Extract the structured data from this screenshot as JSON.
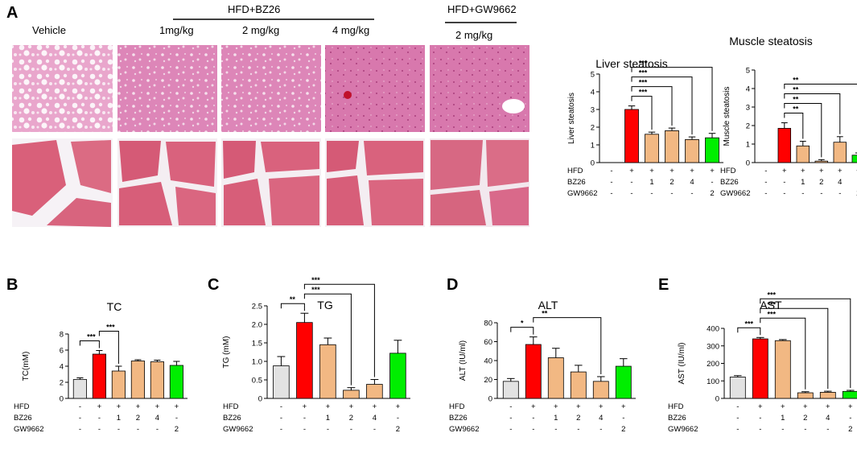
{
  "panels": {
    "A": "A",
    "B": "B",
    "C": "C",
    "D": "D",
    "E": "E"
  },
  "histology_headers": {
    "vehicle": "Vehicle",
    "bz26_group": "HFD+BZ26",
    "dose1": "1mg/kg",
    "dose2": "2 mg/kg",
    "dose4": "4 mg/kg",
    "gw_group": "HFD+GW9662",
    "gw_dose": "2 mg/kg"
  },
  "group_table": {
    "row_labels": [
      "HFD",
      "BZ26",
      "GW9662"
    ],
    "rows": [
      [
        "-",
        "+",
        "+",
        "+",
        "+",
        "+"
      ],
      [
        "-",
        "-",
        "1",
        "2",
        "4",
        "-"
      ],
      [
        "-",
        "-",
        "-",
        "-",
        "-",
        "2"
      ]
    ]
  },
  "bar_colors": [
    "#e2e2e2",
    "#ff0000",
    "#f2b883",
    "#f2b883",
    "#f2b883",
    "#00ee00"
  ],
  "chart_data": [
    {
      "id": "liver",
      "type": "bar",
      "title": "Liver steatosis",
      "ylabel": "Liver steatosis",
      "ylim": [
        0,
        5
      ],
      "yticks": [
        "0",
        "1",
        "2",
        "3",
        "4",
        "5"
      ],
      "values": [
        null,
        3.0,
        1.6,
        1.8,
        1.3,
        1.4
      ],
      "errors": [
        0,
        0.2,
        0.12,
        0.15,
        0.15,
        0.25
      ],
      "significance": [
        {
          "from": 1,
          "to": 2,
          "label": "***"
        },
        {
          "from": 1,
          "to": 3,
          "label": "***"
        },
        {
          "from": 1,
          "to": 4,
          "label": "***"
        },
        {
          "from": 1,
          "to": 5,
          "label": "***"
        }
      ]
    },
    {
      "id": "muscle",
      "type": "bar",
      "title": "Muscle steatosis",
      "ylabel": "Muscle steatosis",
      "ylim": [
        0,
        5
      ],
      "yticks": [
        "0",
        "1",
        "2",
        "3",
        "4",
        "5"
      ],
      "values": [
        null,
        1.85,
        0.9,
        0.08,
        1.1,
        0.4
      ],
      "errors": [
        0,
        0.3,
        0.25,
        0.08,
        0.3,
        0.12
      ],
      "significance": [
        {
          "from": 1,
          "to": 2,
          "label": "**"
        },
        {
          "from": 1,
          "to": 3,
          "label": "**"
        },
        {
          "from": 1,
          "to": 4,
          "label": "**"
        },
        {
          "from": 1,
          "to": 5,
          "label": "**"
        }
      ]
    },
    {
      "id": "tc",
      "type": "bar",
      "title": "TC",
      "ylabel": "TC(mM)",
      "ylim": [
        0,
        8
      ],
      "yticks": [
        "0",
        "2",
        "4",
        "6",
        "8"
      ],
      "values": [
        2.35,
        5.5,
        3.4,
        4.65,
        4.55,
        4.1
      ],
      "errors": [
        0.2,
        0.45,
        0.6,
        0.15,
        0.2,
        0.5
      ],
      "significance": [
        {
          "from": 0,
          "to": 1,
          "label": "***"
        },
        {
          "from": 1,
          "to": 2,
          "label": "***"
        }
      ]
    },
    {
      "id": "tg",
      "type": "bar",
      "title": "TG",
      "ylabel": "TG (mM)",
      "ylim": [
        0,
        2.5
      ],
      "yticks": [
        "0",
        "0.5",
        "1.0",
        "1.5",
        "2.0",
        "2.5"
      ],
      "values": [
        0.88,
        2.05,
        1.45,
        0.22,
        0.38,
        1.22
      ],
      "errors": [
        0.25,
        0.25,
        0.18,
        0.07,
        0.13,
        0.35
      ],
      "significance": [
        {
          "from": 0,
          "to": 1,
          "label": "**"
        },
        {
          "from": 1,
          "to": 3,
          "label": "***"
        },
        {
          "from": 1,
          "to": 4,
          "label": "***"
        }
      ]
    },
    {
      "id": "alt",
      "type": "bar",
      "title": "ALT",
      "ylabel": "ALT (IU/ml)",
      "ylim": [
        0,
        80
      ],
      "yticks": [
        "0",
        "20",
        "40",
        "60",
        "80"
      ],
      "values": [
        18,
        57,
        43,
        28,
        18,
        34
      ],
      "errors": [
        3,
        8,
        10,
        7,
        5,
        8
      ],
      "significance": [
        {
          "from": 0,
          "to": 1,
          "label": "*"
        },
        {
          "from": 1,
          "to": 4,
          "label": "**"
        }
      ]
    },
    {
      "id": "ast",
      "type": "bar",
      "title": "AST",
      "ylabel": "AST (IU/ml)",
      "ylim": [
        0,
        400
      ],
      "yticks": [
        "0",
        "100",
        "200",
        "300",
        "400"
      ],
      "values": [
        122,
        340,
        330,
        32,
        35,
        40
      ],
      "errors": [
        8,
        8,
        6,
        6,
        6,
        6
      ],
      "significance": [
        {
          "from": 0,
          "to": 1,
          "label": "***"
        },
        {
          "from": 1,
          "to": 3,
          "label": "***"
        },
        {
          "from": 1,
          "to": 4,
          "label": "***"
        },
        {
          "from": 1,
          "to": 5,
          "label": "***"
        }
      ]
    }
  ]
}
